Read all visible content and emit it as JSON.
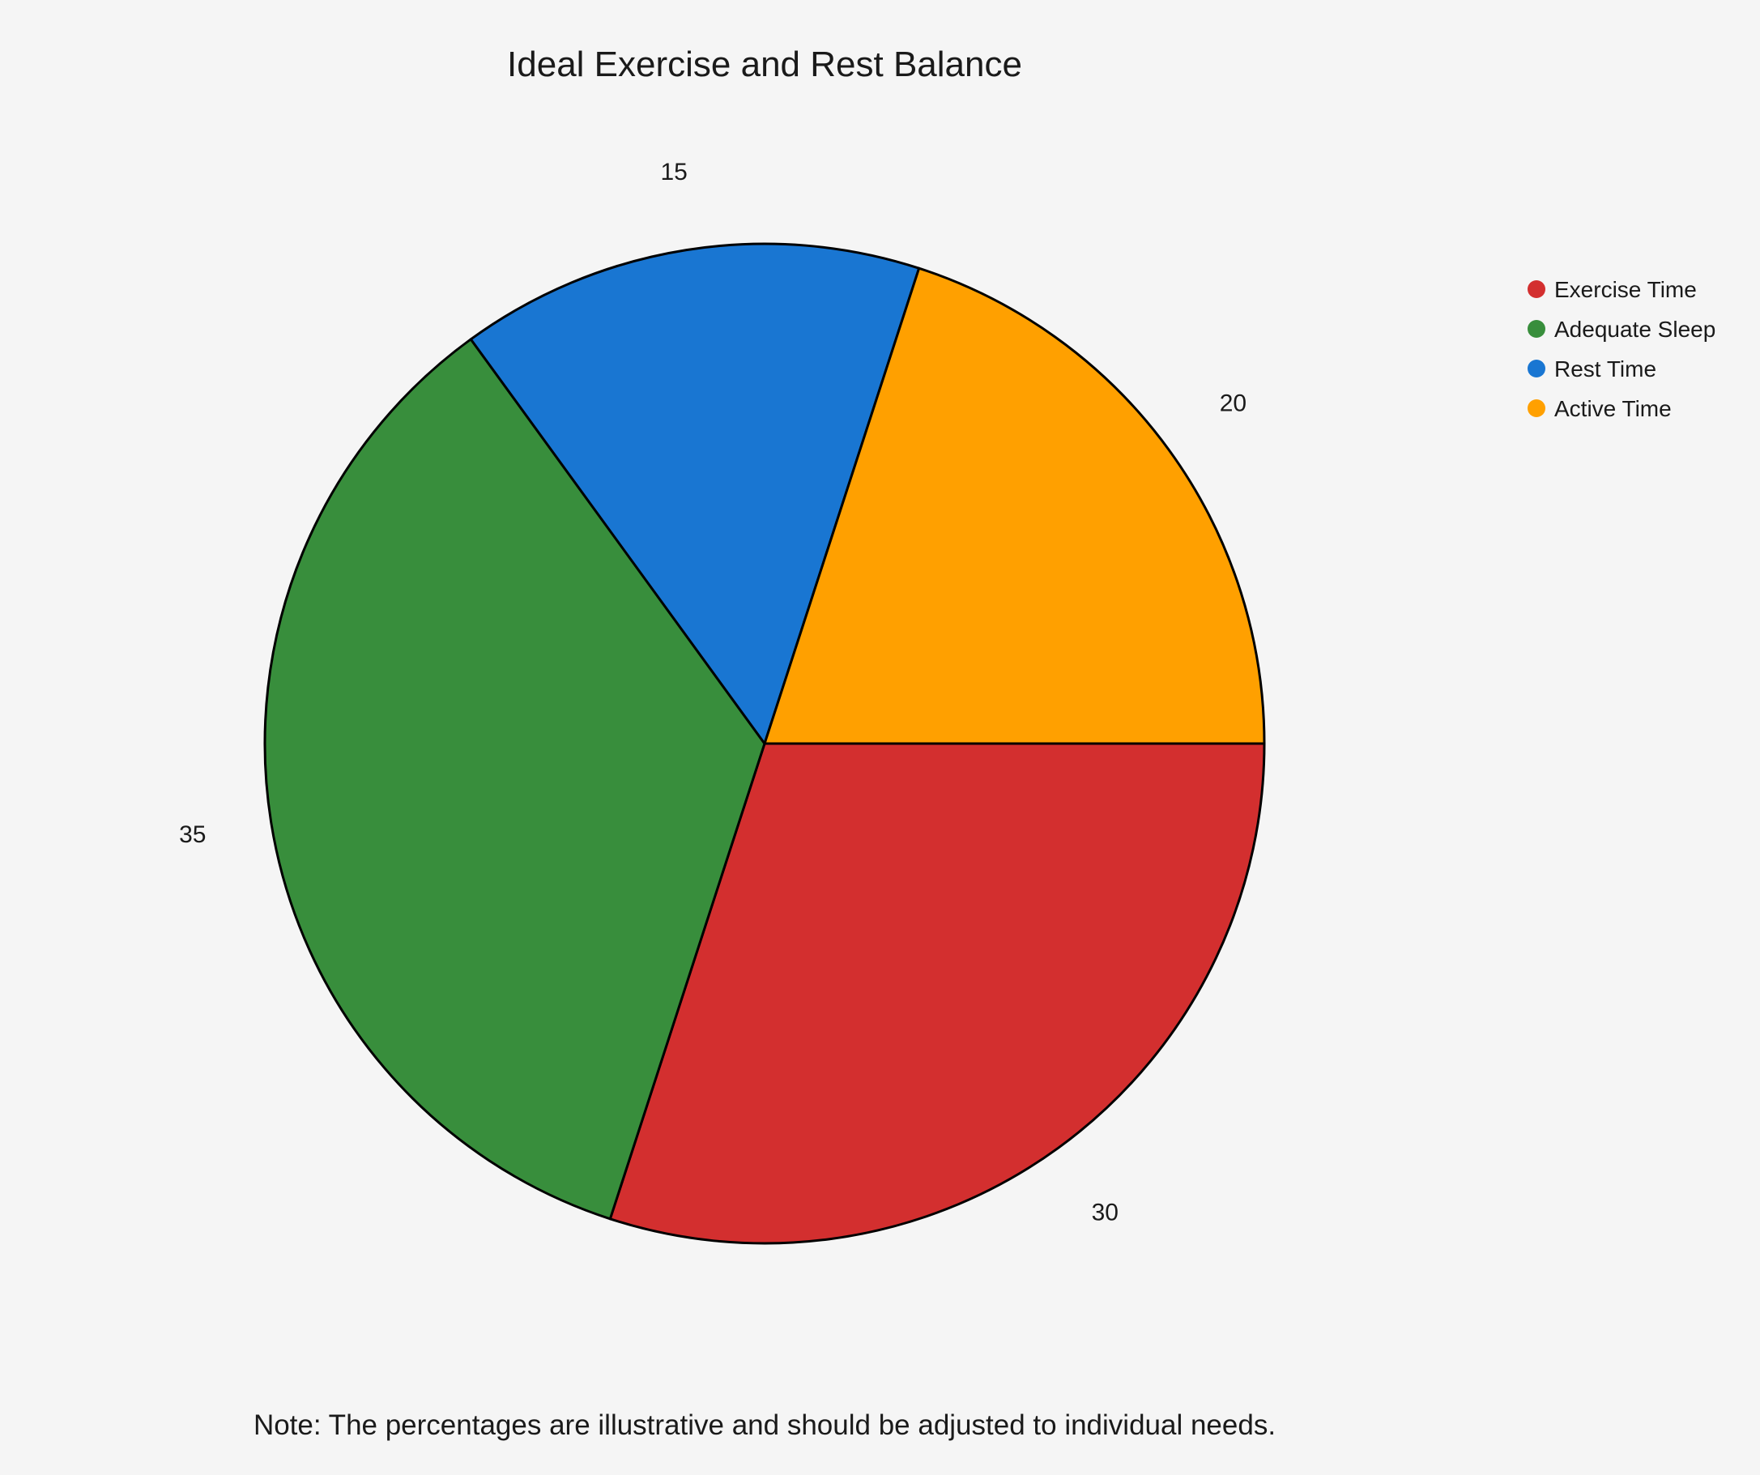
{
  "chart_data": {
    "type": "pie",
    "title": "Ideal Exercise and Rest Balance",
    "categories": [
      "Exercise Time",
      "Adequate Sleep",
      "Rest Time",
      "Active Time"
    ],
    "values": [
      30,
      35,
      15,
      20
    ],
    "colors": [
      "#d32f2f",
      "#388e3c",
      "#1976d2",
      "#ffa000"
    ],
    "slice_labels": [
      "30",
      "35",
      "15",
      "20"
    ],
    "start_angle_deg": 0,
    "direction": "clockwise",
    "legend": {
      "position": "top-right",
      "items": [
        "Exercise Time",
        "Adequate Sleep",
        "Rest Time",
        "Active Time"
      ]
    },
    "note": "Note: The percentages are illustrative and should be adjusted to individual needs."
  },
  "colors": {
    "background": "#f5f5f5",
    "slice_border": "#000000",
    "text": "#1a1a1a"
  }
}
